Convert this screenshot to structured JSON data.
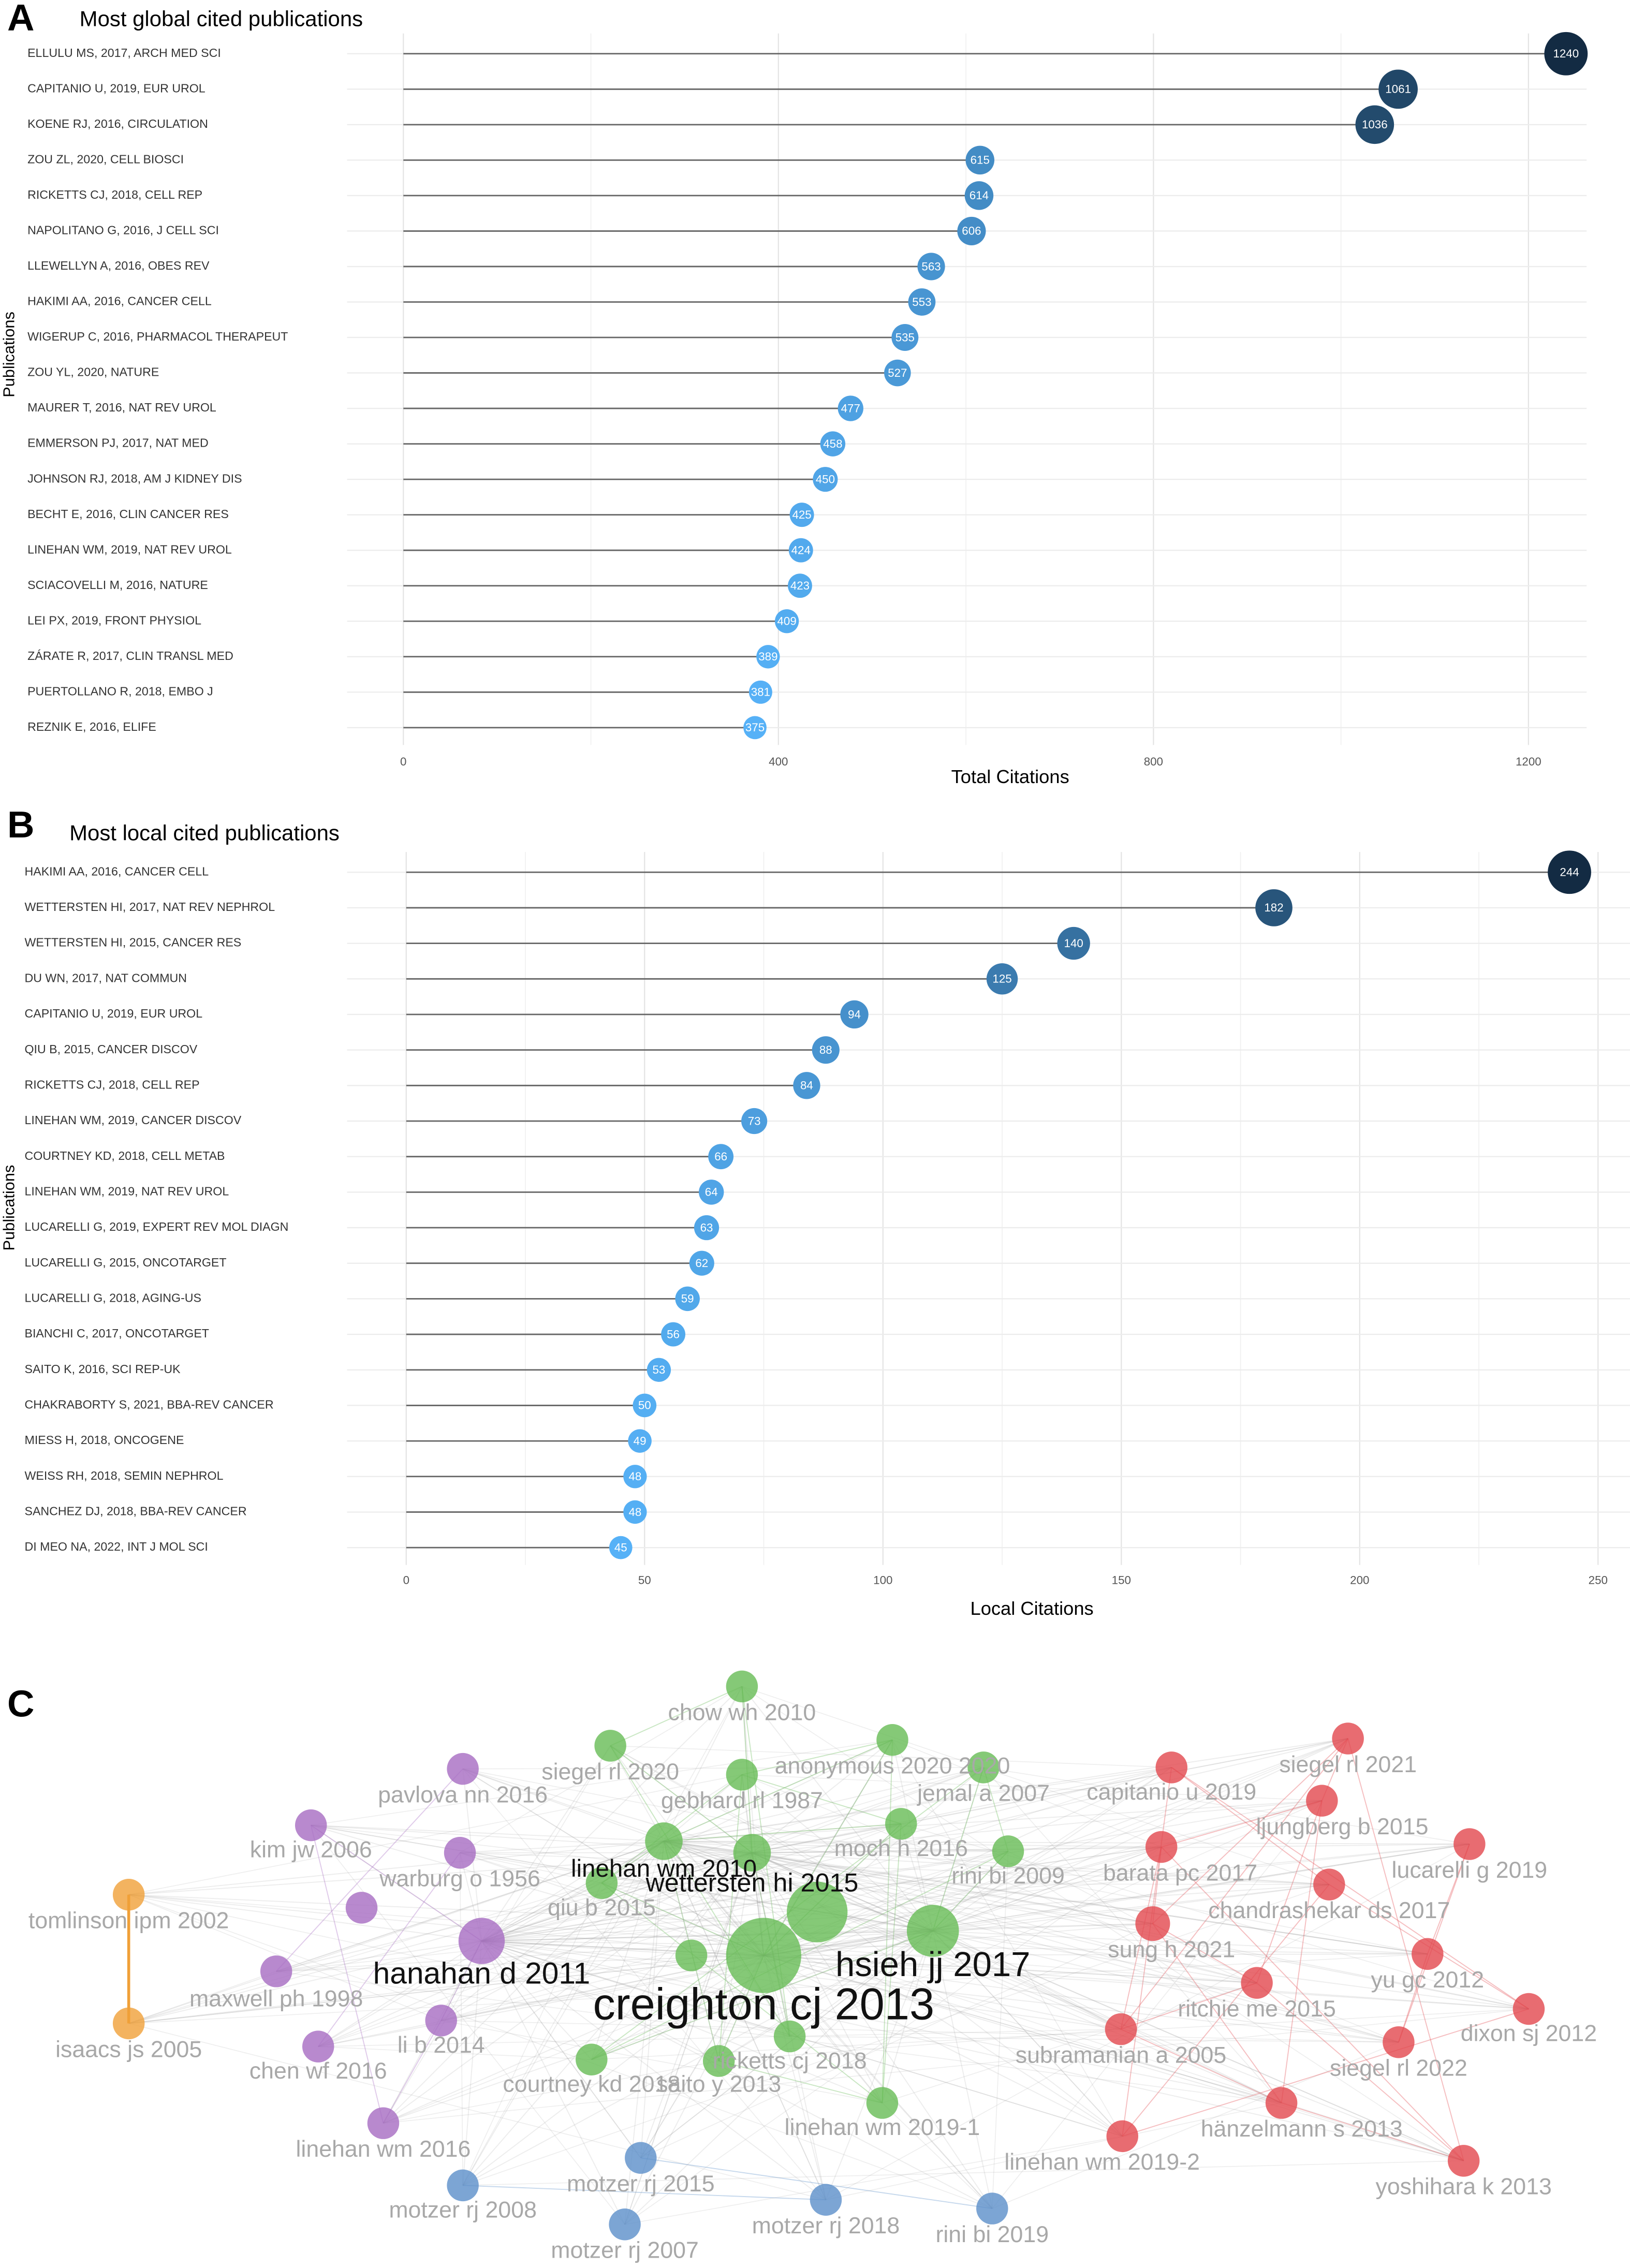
{
  "chart_data": [
    {
      "type": "lollipop",
      "panel": "A",
      "title": "Most global cited publications",
      "x_label": "Total Citations",
      "y_label": "Publications",
      "categories": [
        "ELLULU MS, 2017, ARCH MED SCI",
        "CAPITANIO U, 2019, EUR UROL",
        "KOENE RJ, 2016, CIRCULATION",
        "ZOU ZL, 2020, CELL BIOSCI",
        "RICKETTS CJ, 2018, CELL REP",
        "NAPOLITANO G, 2016, J CELL SCI",
        "LLEWELLYN A, 2016, OBES REV",
        "HAKIMI AA, 2016, CANCER CELL",
        "WIGERUP C, 2016, PHARMACOL THERAPEUT",
        "ZOU YL, 2020, NATURE",
        "MAURER T, 2016, NAT REV UROL",
        "EMMERSON PJ, 2017, NAT MED",
        "JOHNSON RJ, 2018, AM J KIDNEY DIS",
        "BECHT E, 2016, CLIN CANCER RES",
        "LINEHAN WM, 2019, NAT REV UROL",
        "SCIACOVELLI M, 2016, NATURE",
        "LEI PX, 2019, FRONT PHYSIOL",
        "ZÁRATE R, 2017, CLIN TRANSL MED",
        "PUERTOLLANO R, 2018, EMBO J",
        "REZNIK E, 2016, ELIFE"
      ],
      "values": [
        1240,
        1061,
        1036,
        615,
        614,
        606,
        563,
        553,
        535,
        527,
        477,
        458,
        450,
        425,
        424,
        423,
        409,
        389,
        381,
        375
      ],
      "xlim": [
        -60,
        1262
      ],
      "xticks": [
        0,
        400,
        800,
        1200
      ],
      "grid": true,
      "color_scale": [
        "#56b1f7",
        "#132b43"
      ],
      "stem_color": "#666666"
    },
    {
      "type": "lollipop",
      "panel": "B",
      "title": "Most local cited publications",
      "x_label": "Local Citations",
      "y_label": "Publications",
      "categories": [
        "HAKIMI AA, 2016, CANCER CELL",
        "WETTERSTEN HI, 2017, NAT REV NEPHROL",
        "WETTERSTEN HI, 2015, CANCER RES",
        "DU WN, 2017, NAT COMMUN",
        "CAPITANIO U, 2019, EUR UROL",
        "QIU B, 2015, CANCER DISCOV",
        "RICKETTS CJ, 2018, CELL REP",
        "LINEHAN WM, 2019, CANCER DISCOV",
        "COURTNEY KD, 2018, CELL METAB",
        "LINEHAN WM, 2019, NAT REV UROL",
        "LUCARELLI G, 2019, EXPERT REV MOL DIAGN",
        "LUCARELLI G, 2015, ONCOTARGET",
        "LUCARELLI G, 2018, AGING-US",
        "BIANCHI C, 2017, ONCOTARGET",
        "SAITO K, 2016, SCI REP-UK",
        "CHAKRABORTY S, 2021, BBA-REV CANCER",
        "MIESS H, 2018, ONCOGENE",
        "WEISS RH, 2018, SEMIN NEPHROL",
        "SANCHEZ DJ, 2018, BBA-REV CANCER",
        "DI MEO NA, 2022, INT J MOL SCI"
      ],
      "values": [
        244,
        182,
        140,
        125,
        94,
        88,
        84,
        73,
        66,
        64,
        63,
        62,
        59,
        56,
        53,
        50,
        49,
        48,
        48,
        45
      ],
      "xlim": [
        -12.4,
        256.7
      ],
      "xticks": [
        0,
        50,
        100,
        150,
        200,
        250
      ],
      "grid": true,
      "color_scale": [
        "#56b1f7",
        "#132b43"
      ],
      "stem_color": "#666666"
    }
  ],
  "network": {
    "panel": "C",
    "nodes": [
      {
        "label": "chow wh 2010",
        "color": "#66bb55"
      },
      {
        "label": "anonymous 2020 2020",
        "color": "#66bb55"
      },
      {
        "label": "jemal a 2007",
        "color": "#66bb55"
      },
      {
        "label": "gebhard rl 1987",
        "color": "#66bb55"
      },
      {
        "label": "siegel rl 2020",
        "color": "#66bb55"
      },
      {
        "label": "moch h 2016",
        "color": "#66bb55"
      },
      {
        "label": "rini bi 2009",
        "color": "#66bb55"
      },
      {
        "label": "linehan wm 2010",
        "color": "#66bb55"
      },
      {
        "label": "wettersten hi 2015",
        "color": "#66bb55"
      },
      {
        "label": "qiu b 2015",
        "color": "#66bb55"
      },
      {
        "label": "hsieh jj 2017",
        "color": "#66bb55"
      },
      {
        "label": "creighton cj 2013",
        "color": "#66bb55"
      },
      {
        "label": "ricketts cj 2018",
        "color": "#66bb55"
      },
      {
        "label": "saito y 2013",
        "color": "#66bb55"
      },
      {
        "label": "courtney kd 2018",
        "color": "#66bb55"
      },
      {
        "label": "linehan wm 2019-1",
        "color": "#66bb55"
      },
      {
        "label": "pavlova nn 2016",
        "color": "#a66bc2"
      },
      {
        "label": "kim jw 2006",
        "color": "#a66bc2"
      },
      {
        "label": "warburg o 1956",
        "color": "#a66bc2"
      },
      {
        "label": "hanahan d 2011",
        "color": "#a66bc2"
      },
      {
        "label": "maxwell ph 1998",
        "color": "#a66bc2"
      },
      {
        "label": "li b 2014",
        "color": "#a66bc2"
      },
      {
        "label": "chen wf 2016",
        "color": "#a66bc2"
      },
      {
        "label": "linehan wm 2016",
        "color": "#a66bc2"
      },
      {
        "label": "tomlinson ipm 2002",
        "color": "#f0a038"
      },
      {
        "label": "isaacs js 2005",
        "color": "#f0a038"
      },
      {
        "label": "motzer rj 2015",
        "color": "#5b8fc9"
      },
      {
        "label": "motzer rj 2008",
        "color": "#5b8fc9"
      },
      {
        "label": "motzer rj 2007",
        "color": "#5b8fc9"
      },
      {
        "label": "motzer rj 2018",
        "color": "#5b8fc9"
      },
      {
        "label": "rini bi 2019",
        "color": "#5b8fc9"
      },
      {
        "label": "siegel rl 2021",
        "color": "#e2474d"
      },
      {
        "label": "capitanio u 2019",
        "color": "#e2474d"
      },
      {
        "label": "ljungberg b 2015",
        "color": "#e2474d"
      },
      {
        "label": "lucarelli g 2019",
        "color": "#e2474d"
      },
      {
        "label": "barata pc 2017",
        "color": "#e2474d"
      },
      {
        "label": "chandrashekar ds 2017",
        "color": "#e2474d"
      },
      {
        "label": "sung h 2021",
        "color": "#e2474d"
      },
      {
        "label": "yu gc 2012",
        "color": "#e2474d"
      },
      {
        "label": "ritchie me 2015",
        "color": "#e2474d"
      },
      {
        "label": "dixon sj 2012",
        "color": "#e2474d"
      },
      {
        "label": "subramanian a 2005",
        "color": "#e2474d"
      },
      {
        "label": "siegel rl 2022",
        "color": "#e2474d"
      },
      {
        "label": "hänzelmann s 2013",
        "color": "#e2474d"
      },
      {
        "label": "linehan wm 2019-2",
        "color": "#e2474d"
      },
      {
        "label": "yoshihara k 2013",
        "color": "#e2474d"
      }
    ]
  }
}
